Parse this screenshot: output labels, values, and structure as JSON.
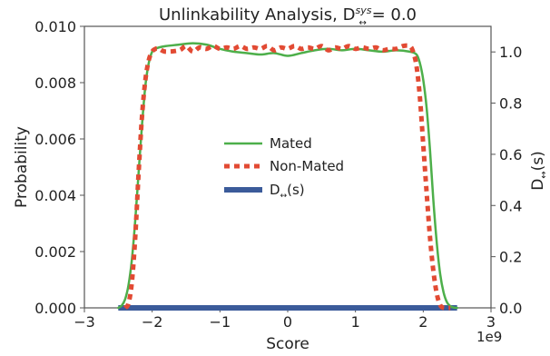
{
  "chart_data": {
    "type": "line",
    "title": "Unlinkability Analysis, D",
    "title_sub": "↔",
    "title_sup": "sys",
    "title_suffix": " = 0.0",
    "xlabel": "Score",
    "ylabel_left": "Probability",
    "ylabel_right_main": "D",
    "ylabel_right_sub": "↔",
    "ylabel_right_suffix": "(s)",
    "x_offset_label": "1e9",
    "xlim": [
      -3,
      3
    ],
    "ylim_left": [
      0,
      0.01
    ],
    "ylim_right": [
      0,
      1.1
    ],
    "x_ticks": [
      -3,
      -2,
      -1,
      0,
      1,
      2,
      3
    ],
    "x_tick_labels": [
      "−3",
      "−2",
      "−1",
      "0",
      "1",
      "2",
      "3"
    ],
    "y_left_ticks": [
      0,
      0.002,
      0.004,
      0.006,
      0.008,
      0.01
    ],
    "y_left_tick_labels": [
      "0.000",
      "0.002",
      "0.004",
      "0.006",
      "0.008",
      "0.010"
    ],
    "y_right_ticks": [
      0,
      0.2,
      0.4,
      0.6,
      0.8,
      1.0
    ],
    "y_right_tick_labels": [
      "0.0",
      "0.2",
      "0.4",
      "0.6",
      "0.8",
      "1.0"
    ],
    "grid": false,
    "legend_position": "center",
    "series": [
      {
        "name": "Mated",
        "axis": "left",
        "color": "#4daf4a",
        "style": "solid",
        "x": [
          -2.5,
          -2.45,
          -2.4,
          -2.35,
          -2.3,
          -2.25,
          -2.2,
          -2.15,
          -2.1,
          -2.05,
          -2.0,
          -1.95,
          -1.9,
          -1.8,
          -1.6,
          -1.4,
          -1.2,
          -1.0,
          -0.8,
          -0.6,
          -0.4,
          -0.2,
          0.0,
          0.2,
          0.4,
          0.6,
          0.8,
          1.0,
          1.2,
          1.4,
          1.6,
          1.8,
          1.9,
          1.95,
          2.0,
          2.05,
          2.1,
          2.15,
          2.2,
          2.25,
          2.3,
          2.35,
          2.4,
          2.45,
          2.5
        ],
        "y": [
          0.0,
          8e-05,
          0.0003,
          0.0008,
          0.0017,
          0.0031,
          0.0048,
          0.0065,
          0.0079,
          0.0087,
          0.0091,
          0.0092,
          0.00925,
          0.0093,
          0.00935,
          0.0094,
          0.00935,
          0.0092,
          0.0091,
          0.00905,
          0.009,
          0.00905,
          0.00895,
          0.00905,
          0.00915,
          0.0092,
          0.00915,
          0.0092,
          0.00915,
          0.0091,
          0.00915,
          0.0091,
          0.009,
          0.0087,
          0.0081,
          0.0071,
          0.0056,
          0.0038,
          0.0023,
          0.0012,
          0.00055,
          0.0002,
          6e-05,
          1e-05,
          0.0
        ]
      },
      {
        "name": "Non-Mated",
        "axis": "left",
        "color": "#e24a33",
        "style": "dotted",
        "x": [
          -2.4,
          -2.35,
          -2.3,
          -2.25,
          -2.2,
          -2.15,
          -2.1,
          -2.05,
          -2.0,
          -1.95,
          -1.9,
          -1.8,
          -1.6,
          -1.5,
          -1.4,
          -1.3,
          -1.2,
          -1.1,
          -1.0,
          -0.9,
          -0.8,
          -0.7,
          -0.6,
          -0.5,
          -0.4,
          -0.3,
          -0.2,
          -0.1,
          0.0,
          0.1,
          0.2,
          0.3,
          0.4,
          0.5,
          0.6,
          0.7,
          0.8,
          0.9,
          1.0,
          1.1,
          1.2,
          1.3,
          1.4,
          1.5,
          1.6,
          1.7,
          1.8,
          1.85,
          1.9,
          1.95,
          2.0,
          2.05,
          2.1,
          2.15,
          2.2,
          2.25,
          2.3,
          2.35,
          2.4
        ],
        "y": [
          0.0,
          0.00015,
          0.0009,
          0.0025,
          0.0048,
          0.0068,
          0.0081,
          0.0088,
          0.0091,
          0.0092,
          0.0092,
          0.0091,
          0.00915,
          0.0093,
          0.0091,
          0.00925,
          0.0092,
          0.0093,
          0.0092,
          0.00925,
          0.0092,
          0.0093,
          0.0092,
          0.00925,
          0.0092,
          0.0093,
          0.00915,
          0.00925,
          0.0092,
          0.0093,
          0.0092,
          0.00925,
          0.0092,
          0.0093,
          0.00915,
          0.00925,
          0.0092,
          0.0093,
          0.0092,
          0.00925,
          0.0092,
          0.00925,
          0.00915,
          0.0092,
          0.0092,
          0.0093,
          0.0093,
          0.0091,
          0.0086,
          0.0075,
          0.0058,
          0.0041,
          0.0025,
          0.0013,
          0.0005,
          0.0001,
          0.0,
          0.0,
          0.0
        ]
      },
      {
        "name": "D(s)",
        "legend_main": "D",
        "legend_sub": "↔",
        "legend_suffix": "(s)",
        "axis": "right",
        "color": "#3b5b9a",
        "style": "solid",
        "x": [
          -2.5,
          2.5
        ],
        "y": [
          0.0,
          0.0
        ]
      }
    ]
  }
}
